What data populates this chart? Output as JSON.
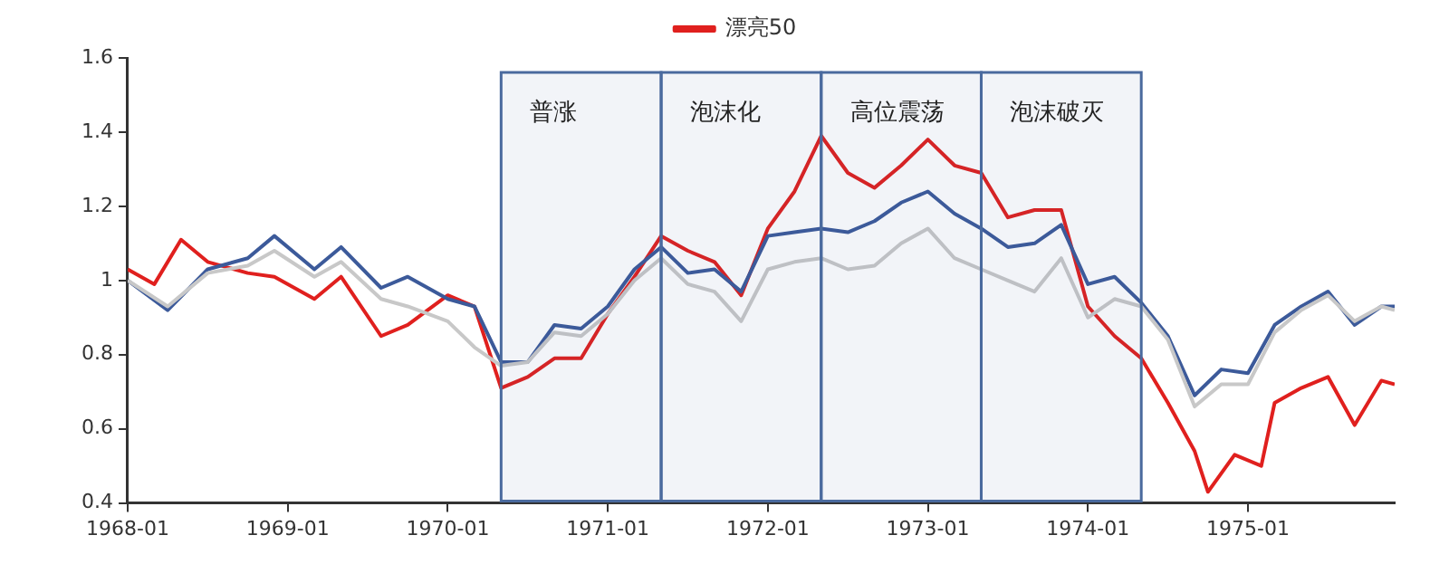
{
  "chart_data": {
    "type": "line",
    "xlim": [
      "1968-01",
      "1975-12"
    ],
    "xticks": [
      "1968-01",
      "1969-01",
      "1970-01",
      "1971-01",
      "1972-01",
      "1973-01",
      "1974-01",
      "1975-01"
    ],
    "ylim": [
      0.4,
      1.6
    ],
    "yticks": [
      0.4,
      0.6,
      0.8,
      1,
      1.2,
      1.4,
      1.6
    ],
    "grid": false,
    "legend": "top",
    "marker": "none",
    "line_style": "solid",
    "bands": [
      {
        "axis": "x",
        "from": "1970-05",
        "to": "1971-05",
        "label": "普涨",
        "color": "#4a6a9e"
      },
      {
        "axis": "x",
        "from": "1971-05",
        "to": "1972-05",
        "label": "泡沫化",
        "color": "#4a6a9e"
      },
      {
        "axis": "x",
        "from": "1972-05",
        "to": "1973-05",
        "label": "高位震荡",
        "color": "#4a6a9e"
      },
      {
        "axis": "x",
        "from": "1973-05",
        "to": "1974-05",
        "label": "泡沫破灭",
        "color": "#4a6a9e"
      }
    ],
    "series": [
      {
        "color": "#c8c8c8",
        "x": [
          "1968-01",
          "1968-04",
          "1968-07",
          "1968-10",
          "1968-12",
          "1969-03",
          "1969-05",
          "1969-08",
          "1969-10",
          "1970-01",
          "1970-03",
          "1970-05",
          "1970-07",
          "1970-09",
          "1970-11",
          "1971-01",
          "1971-03",
          "1971-05",
          "1971-07",
          "1971-09",
          "1971-11",
          "1972-01",
          "1972-03",
          "1972-05",
          "1972-07",
          "1972-09",
          "1972-11",
          "1973-01",
          "1973-03",
          "1973-05",
          "1973-07",
          "1973-09",
          "1973-11",
          "1974-01",
          "1974-03",
          "1974-05",
          "1974-07",
          "1974-09",
          "1974-11",
          "1975-01",
          "1975-03",
          "1975-05",
          "1975-07",
          "1975-09",
          "1975-11",
          "1975-12"
        ],
        "values": [
          1.0,
          0.93,
          1.02,
          1.04,
          1.08,
          1.01,
          1.05,
          0.95,
          0.93,
          0.89,
          0.82,
          0.77,
          0.78,
          0.86,
          0.85,
          0.91,
          1.0,
          1.06,
          0.99,
          0.97,
          0.89,
          1.03,
          1.05,
          1.06,
          1.03,
          1.04,
          1.1,
          1.14,
          1.06,
          1.03,
          1.0,
          0.97,
          1.06,
          0.9,
          0.95,
          0.93,
          0.84,
          0.66,
          0.72,
          0.72,
          0.86,
          0.92,
          0.96,
          0.89,
          0.93,
          0.92
        ]
      },
      {
        "color": "#3c5a9a",
        "x": [
          "1968-01",
          "1968-04",
          "1968-07",
          "1968-10",
          "1968-12",
          "1969-03",
          "1969-05",
          "1969-08",
          "1969-10",
          "1970-01",
          "1970-03",
          "1970-05",
          "1970-07",
          "1970-09",
          "1970-11",
          "1971-01",
          "1971-03",
          "1971-05",
          "1971-07",
          "1971-09",
          "1971-11",
          "1972-01",
          "1972-03",
          "1972-05",
          "1972-07",
          "1972-09",
          "1972-11",
          "1973-01",
          "1973-03",
          "1973-05",
          "1973-07",
          "1973-09",
          "1973-11",
          "1974-01",
          "1974-03",
          "1974-05",
          "1974-07",
          "1974-09",
          "1974-11",
          "1975-01",
          "1975-03",
          "1975-05",
          "1975-07",
          "1975-09",
          "1975-11",
          "1975-12"
        ],
        "values": [
          1.0,
          0.92,
          1.03,
          1.06,
          1.12,
          1.03,
          1.09,
          0.98,
          1.01,
          0.95,
          0.93,
          0.78,
          0.78,
          0.88,
          0.87,
          0.93,
          1.03,
          1.09,
          1.02,
          1.03,
          0.97,
          1.12,
          1.13,
          1.14,
          1.13,
          1.16,
          1.21,
          1.24,
          1.18,
          1.14,
          1.09,
          1.1,
          1.15,
          0.99,
          1.01,
          0.94,
          0.85,
          0.69,
          0.76,
          0.75,
          0.88,
          0.93,
          0.97,
          0.88,
          0.93,
          0.93
        ]
      },
      {
        "name": "漂亮50",
        "color": "#e0201e",
        "x": [
          "1968-01",
          "1968-03",
          "1968-05",
          "1968-07",
          "1968-10",
          "1968-12",
          "1969-03",
          "1969-05",
          "1969-08",
          "1969-10",
          "1970-01",
          "1970-03",
          "1970-05",
          "1970-07",
          "1970-09",
          "1970-11",
          "1971-01",
          "1971-03",
          "1971-05",
          "1971-07",
          "1971-09",
          "1971-11",
          "1972-01",
          "1972-03",
          "1972-05",
          "1972-07",
          "1972-09",
          "1972-11",
          "1973-01",
          "1973-03",
          "1973-05",
          "1973-07",
          "1973-09",
          "1973-11",
          "1974-01",
          "1974-03",
          "1974-05",
          "1974-07",
          "1974-09",
          "1974-10",
          "1974-12",
          "1975-02",
          "1975-03",
          "1975-05",
          "1975-07",
          "1975-09",
          "1975-11",
          "1975-12"
        ],
        "values": [
          1.03,
          0.99,
          1.11,
          1.05,
          1.02,
          1.01,
          0.95,
          1.01,
          0.85,
          0.88,
          0.96,
          0.93,
          0.71,
          0.74,
          0.79,
          0.79,
          0.91,
          1.01,
          1.12,
          1.08,
          1.05,
          0.96,
          1.14,
          1.24,
          1.39,
          1.29,
          1.25,
          1.31,
          1.38,
          1.31,
          1.29,
          1.17,
          1.19,
          1.19,
          0.93,
          0.85,
          0.79,
          0.67,
          0.54,
          0.43,
          0.53,
          0.5,
          0.67,
          0.71,
          0.74,
          0.61,
          0.73,
          0.72
        ]
      }
    ]
  }
}
